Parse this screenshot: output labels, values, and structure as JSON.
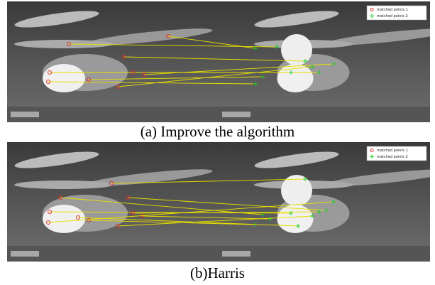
{
  "figures": [
    {
      "caption": "(a) Improve the algorithm",
      "legend": [
        "matched points 1",
        "matched points 2"
      ]
    },
    {
      "caption": "(b)Harris",
      "legend": [
        "matched points 1",
        "matched points 2"
      ]
    }
  ]
}
